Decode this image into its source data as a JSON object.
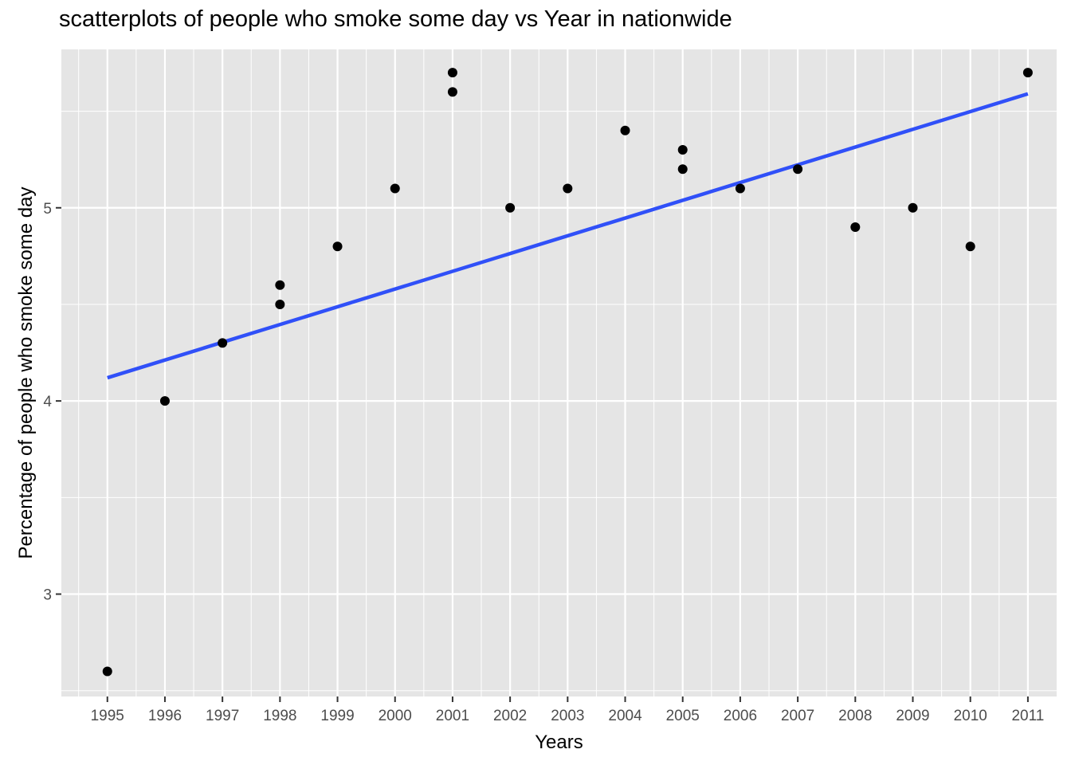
{
  "chart_data": {
    "type": "scatter",
    "title": "scatterplots of people who smoke some day vs Year in nationwide",
    "xlabel": "Years",
    "ylabel": "Percentage of people who smoke some day",
    "x_ticks": [
      "1995",
      "1996",
      "1997",
      "1998",
      "1999",
      "2000",
      "2001",
      "2002",
      "2003",
      "2004",
      "2005",
      "2006",
      "2007",
      "2008",
      "2009",
      "2010",
      "2011"
    ],
    "y_ticks": [
      3,
      4,
      5
    ],
    "xlim": [
      1994.2,
      2011.5
    ],
    "ylim": [
      2.47,
      5.82
    ],
    "grid": true,
    "colors": {
      "panel": "#e5e5e5",
      "grid": "#ffffff",
      "points": "#000000",
      "trend_line": "#3050f8"
    },
    "points": [
      {
        "x": 1995,
        "y": 2.6
      },
      {
        "x": 1996,
        "y": 4.0
      },
      {
        "x": 1997,
        "y": 4.3
      },
      {
        "x": 1998,
        "y": 4.6
      },
      {
        "x": 1998,
        "y": 4.5
      },
      {
        "x": 1999,
        "y": 4.8
      },
      {
        "x": 2000,
        "y": 5.1
      },
      {
        "x": 2001,
        "y": 5.7
      },
      {
        "x": 2001,
        "y": 5.6
      },
      {
        "x": 2002,
        "y": 5.0
      },
      {
        "x": 2003,
        "y": 5.1
      },
      {
        "x": 2004,
        "y": 5.4
      },
      {
        "x": 2005,
        "y": 5.3
      },
      {
        "x": 2005,
        "y": 5.2
      },
      {
        "x": 2006,
        "y": 5.1
      },
      {
        "x": 2007,
        "y": 5.2
      },
      {
        "x": 2008,
        "y": 4.9
      },
      {
        "x": 2009,
        "y": 5.0
      },
      {
        "x": 2010,
        "y": 4.8
      },
      {
        "x": 2011,
        "y": 5.7
      }
    ],
    "trend_line": {
      "x": [
        1995,
        2011
      ],
      "y": [
        4.12,
        5.59
      ]
    }
  }
}
